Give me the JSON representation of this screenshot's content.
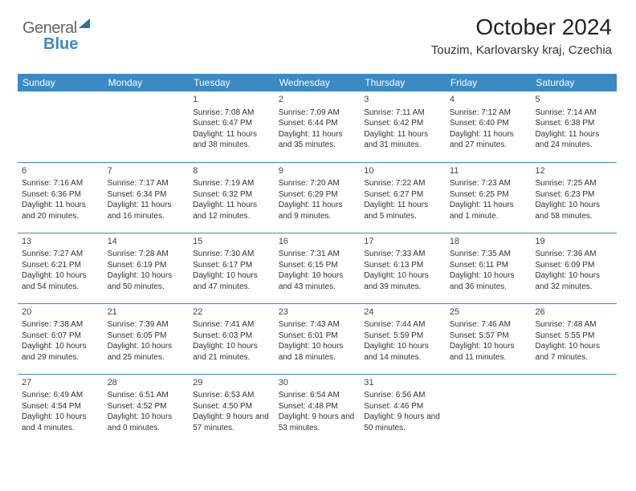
{
  "logo": {
    "part1": "General",
    "part2": "Blue"
  },
  "title": "October 2024",
  "location": "Touzim, Karlovarsky kraj, Czechia",
  "colors": {
    "accent": "#3b8ac4",
    "header_text": "#ffffff",
    "body_text": "#333333",
    "background": "#ffffff"
  },
  "day_headers": [
    "Sunday",
    "Monday",
    "Tuesday",
    "Wednesday",
    "Thursday",
    "Friday",
    "Saturday"
  ],
  "weeks": [
    [
      null,
      null,
      {
        "n": "1",
        "sr": "Sunrise: 7:08 AM",
        "ss": "Sunset: 6:47 PM",
        "dl": "Daylight: 11 hours and 38 minutes."
      },
      {
        "n": "2",
        "sr": "Sunrise: 7:09 AM",
        "ss": "Sunset: 6:44 PM",
        "dl": "Daylight: 11 hours and 35 minutes."
      },
      {
        "n": "3",
        "sr": "Sunrise: 7:11 AM",
        "ss": "Sunset: 6:42 PM",
        "dl": "Daylight: 11 hours and 31 minutes."
      },
      {
        "n": "4",
        "sr": "Sunrise: 7:12 AM",
        "ss": "Sunset: 6:40 PM",
        "dl": "Daylight: 11 hours and 27 minutes."
      },
      {
        "n": "5",
        "sr": "Sunrise: 7:14 AM",
        "ss": "Sunset: 6:38 PM",
        "dl": "Daylight: 11 hours and 24 minutes."
      }
    ],
    [
      {
        "n": "6",
        "sr": "Sunrise: 7:16 AM",
        "ss": "Sunset: 6:36 PM",
        "dl": "Daylight: 11 hours and 20 minutes."
      },
      {
        "n": "7",
        "sr": "Sunrise: 7:17 AM",
        "ss": "Sunset: 6:34 PM",
        "dl": "Daylight: 11 hours and 16 minutes."
      },
      {
        "n": "8",
        "sr": "Sunrise: 7:19 AM",
        "ss": "Sunset: 6:32 PM",
        "dl": "Daylight: 11 hours and 12 minutes."
      },
      {
        "n": "9",
        "sr": "Sunrise: 7:20 AM",
        "ss": "Sunset: 6:29 PM",
        "dl": "Daylight: 11 hours and 9 minutes."
      },
      {
        "n": "10",
        "sr": "Sunrise: 7:22 AM",
        "ss": "Sunset: 6:27 PM",
        "dl": "Daylight: 11 hours and 5 minutes."
      },
      {
        "n": "11",
        "sr": "Sunrise: 7:23 AM",
        "ss": "Sunset: 6:25 PM",
        "dl": "Daylight: 11 hours and 1 minute."
      },
      {
        "n": "12",
        "sr": "Sunrise: 7:25 AM",
        "ss": "Sunset: 6:23 PM",
        "dl": "Daylight: 10 hours and 58 minutes."
      }
    ],
    [
      {
        "n": "13",
        "sr": "Sunrise: 7:27 AM",
        "ss": "Sunset: 6:21 PM",
        "dl": "Daylight: 10 hours and 54 minutes."
      },
      {
        "n": "14",
        "sr": "Sunrise: 7:28 AM",
        "ss": "Sunset: 6:19 PM",
        "dl": "Daylight: 10 hours and 50 minutes."
      },
      {
        "n": "15",
        "sr": "Sunrise: 7:30 AM",
        "ss": "Sunset: 6:17 PM",
        "dl": "Daylight: 10 hours and 47 minutes."
      },
      {
        "n": "16",
        "sr": "Sunrise: 7:31 AM",
        "ss": "Sunset: 6:15 PM",
        "dl": "Daylight: 10 hours and 43 minutes."
      },
      {
        "n": "17",
        "sr": "Sunrise: 7:33 AM",
        "ss": "Sunset: 6:13 PM",
        "dl": "Daylight: 10 hours and 39 minutes."
      },
      {
        "n": "18",
        "sr": "Sunrise: 7:35 AM",
        "ss": "Sunset: 6:11 PM",
        "dl": "Daylight: 10 hours and 36 minutes."
      },
      {
        "n": "19",
        "sr": "Sunrise: 7:36 AM",
        "ss": "Sunset: 6:09 PM",
        "dl": "Daylight: 10 hours and 32 minutes."
      }
    ],
    [
      {
        "n": "20",
        "sr": "Sunrise: 7:38 AM",
        "ss": "Sunset: 6:07 PM",
        "dl": "Daylight: 10 hours and 29 minutes."
      },
      {
        "n": "21",
        "sr": "Sunrise: 7:39 AM",
        "ss": "Sunset: 6:05 PM",
        "dl": "Daylight: 10 hours and 25 minutes."
      },
      {
        "n": "22",
        "sr": "Sunrise: 7:41 AM",
        "ss": "Sunset: 6:03 PM",
        "dl": "Daylight: 10 hours and 21 minutes."
      },
      {
        "n": "23",
        "sr": "Sunrise: 7:43 AM",
        "ss": "Sunset: 6:01 PM",
        "dl": "Daylight: 10 hours and 18 minutes."
      },
      {
        "n": "24",
        "sr": "Sunrise: 7:44 AM",
        "ss": "Sunset: 5:59 PM",
        "dl": "Daylight: 10 hours and 14 minutes."
      },
      {
        "n": "25",
        "sr": "Sunrise: 7:46 AM",
        "ss": "Sunset: 5:57 PM",
        "dl": "Daylight: 10 hours and 11 minutes."
      },
      {
        "n": "26",
        "sr": "Sunrise: 7:48 AM",
        "ss": "Sunset: 5:55 PM",
        "dl": "Daylight: 10 hours and 7 minutes."
      }
    ],
    [
      {
        "n": "27",
        "sr": "Sunrise: 6:49 AM",
        "ss": "Sunset: 4:54 PM",
        "dl": "Daylight: 10 hours and 4 minutes."
      },
      {
        "n": "28",
        "sr": "Sunrise: 6:51 AM",
        "ss": "Sunset: 4:52 PM",
        "dl": "Daylight: 10 hours and 0 minutes."
      },
      {
        "n": "29",
        "sr": "Sunrise: 6:53 AM",
        "ss": "Sunset: 4:50 PM",
        "dl": "Daylight: 9 hours and 57 minutes."
      },
      {
        "n": "30",
        "sr": "Sunrise: 6:54 AM",
        "ss": "Sunset: 4:48 PM",
        "dl": "Daylight: 9 hours and 53 minutes."
      },
      {
        "n": "31",
        "sr": "Sunrise: 6:56 AM",
        "ss": "Sunset: 4:46 PM",
        "dl": "Daylight: 9 hours and 50 minutes."
      },
      null,
      null
    ]
  ]
}
